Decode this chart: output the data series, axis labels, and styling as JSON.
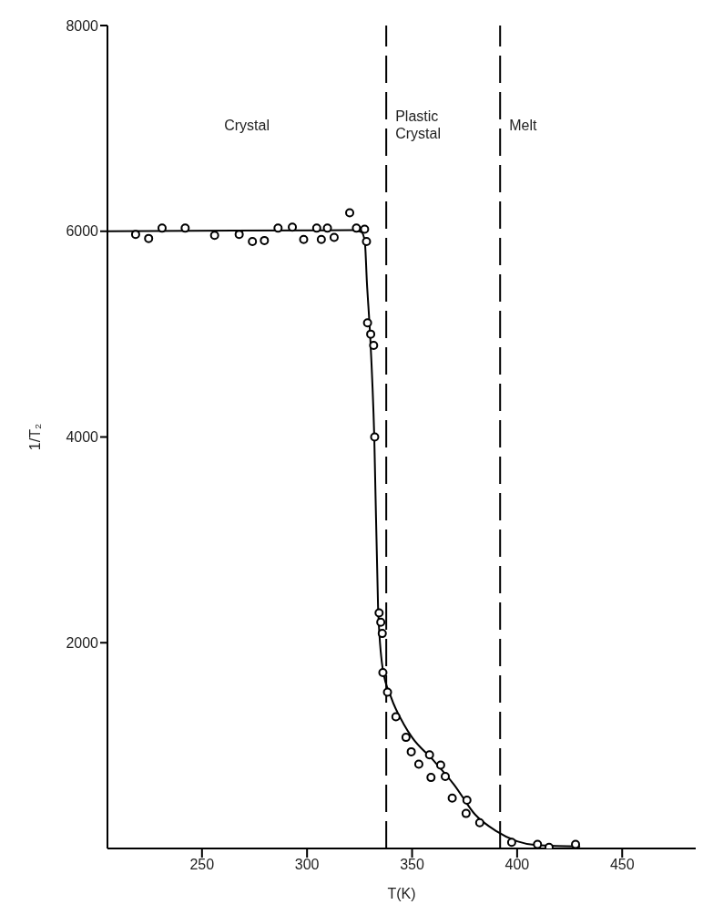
{
  "chart_data": {
    "type": "scatter",
    "xlabel": "T(K)",
    "ylabel": "1/T₂",
    "xlim": [
      205,
      485
    ],
    "xticks": [
      250,
      300,
      350,
      400,
      450
    ],
    "ylim": [
      0,
      8000
    ],
    "yticks": [
      2000,
      4000,
      6000,
      8000
    ],
    "marker": "circle",
    "series": [
      {
        "color": "#000000",
        "x": [
          218.4,
          224.6,
          231,
          242,
          256,
          267.7,
          274,
          279.7,
          286.2,
          293,
          298.4,
          304.6,
          306.8,
          309.7,
          312.9,
          320.3,
          323.5,
          327.4,
          328.3,
          328.8,
          330.3,
          331.7,
          332.2,
          334.3,
          335.1,
          335.8,
          336.1,
          338.3,
          342.3,
          347.1,
          349.6,
          353.2,
          358.3,
          359,
          363.6,
          365.8,
          369.1,
          375.7,
          376.1,
          382.2,
          397.4,
          409.7,
          415.2,
          427.8
        ],
        "values": [
          5970,
          5930,
          6030,
          6030,
          5960,
          5970,
          5900,
          5910,
          6030,
          6040,
          5920,
          6030,
          5920,
          6030,
          5940,
          6180,
          6030,
          6020,
          5900,
          5110,
          5000,
          4890,
          4000,
          2290,
          2200,
          2090,
          1710,
          1520,
          1280,
          1080,
          940,
          820,
          910,
          690,
          810,
          700,
          490,
          340,
          470,
          250,
          60,
          40,
          10,
          40
        ]
      },
      {
        "type": "line",
        "color": "#000000",
        "marker": "none",
        "line_style": "solid",
        "x": [
          205,
          322,
          326,
          327.5,
          328.5,
          330,
          332,
          333.8,
          336,
          340,
          346,
          350,
          360,
          370,
          380,
          390,
          400,
          410,
          430
        ],
        "values": [
          6000,
          6010,
          5990,
          5900,
          5500,
          5000,
          4000,
          2350,
          1750,
          1470,
          1210,
          1080,
          860,
          620,
          330,
          170,
          70,
          30,
          20
        ]
      }
    ],
    "ref_lines": [
      {
        "axis": "x",
        "value": 337.7,
        "color": "#000000",
        "line_style": "dashed"
      },
      {
        "axis": "x",
        "value": 391.9,
        "color": "#000000",
        "line_style": "dashed"
      }
    ],
    "annotations": [
      "Crystal",
      "Plastic\nCrystal",
      "Melt"
    ]
  }
}
